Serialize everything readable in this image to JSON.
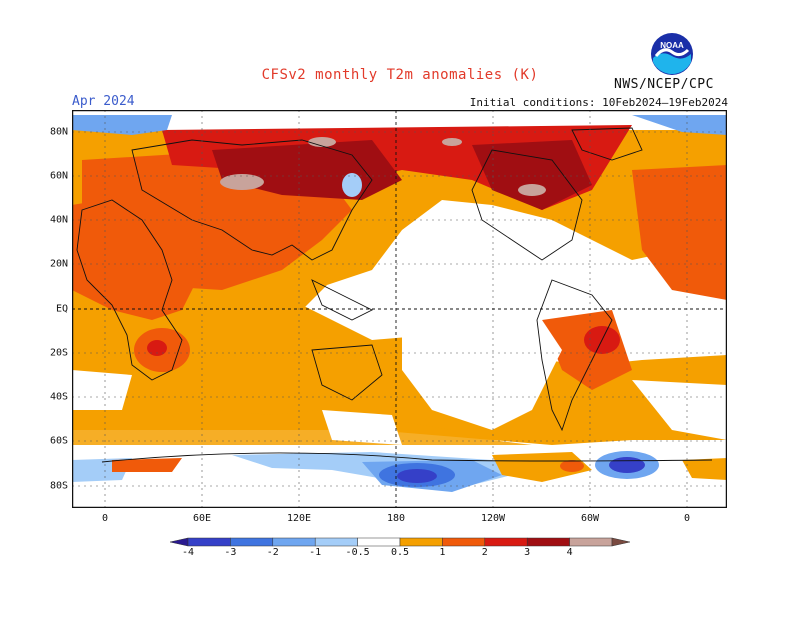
{
  "title": "CFSv2 monthly T2m anomalies (K)",
  "period": "Apr 2024",
  "initial_conditions": "Initial conditions: 10Feb2024–19Feb2024",
  "organization": "NWS/NCEP/CPC",
  "logo_text": "NOAA",
  "lat_labels": [
    "80N",
    "60N",
    "40N",
    "20N",
    "EQ",
    "20S",
    "40S",
    "60S",
    "80S"
  ],
  "lon_labels": [
    "0",
    "60E",
    "120E",
    "180",
    "120W",
    "60W",
    "0"
  ],
  "colorbar": {
    "labels": [
      "-4",
      "-3",
      "-2",
      "-1",
      "-0.5",
      "0.5",
      "1",
      "2",
      "3",
      "4"
    ],
    "colors": [
      "#2a1a90",
      "#3540c8",
      "#3f74e0",
      "#6fa6f0",
      "#a4cdf8",
      "#ffffff",
      "#f5a000",
      "#f05a0a",
      "#d81a12",
      "#a00e12",
      "#c8a39b",
      "#7a4a40"
    ]
  },
  "map_colors": {
    "ocean_neutral": "#ffffff",
    "warm_05": "#f5a000",
    "warm_1": "#f05a0a",
    "warm_2": "#d81a12",
    "warm_3": "#a00e12",
    "warm_4": "#c8a39b",
    "cool_05": "#a4cdf8",
    "cool_1": "#6fa6f0",
    "cool_2": "#3f74e0",
    "cool_3": "#3540c8"
  }
}
